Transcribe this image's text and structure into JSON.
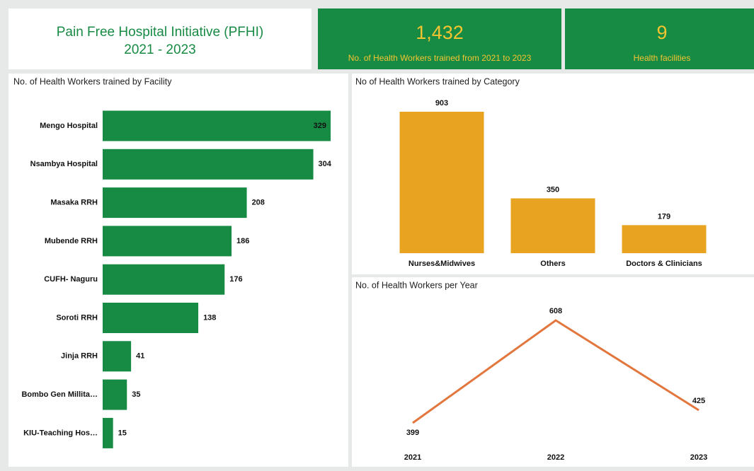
{
  "header": {
    "title_line1": "Pain Free Hospital Initiative (PFHI)",
    "title_line2": "2021 - 2023"
  },
  "kpis": [
    {
      "value": "1,432",
      "label": "No. of Health Workers trained from 2021 to 2023"
    },
    {
      "value": "9",
      "label": "Health facilities"
    }
  ],
  "chart_data": [
    {
      "type": "bar",
      "orientation": "horizontal",
      "title": "No. of Health Workers trained by Facility",
      "categories": [
        "Mengo Hospital",
        "Nsambya Hospital",
        "Masaka RRH",
        "Mubende RRH",
        "CUFH- Naguru",
        "Soroti RRH",
        "Jinja RRH",
        "Bombo Gen Millita…",
        "KIU-Teaching Hos…"
      ],
      "values": [
        329,
        304,
        208,
        186,
        176,
        138,
        41,
        35,
        15
      ],
      "color": "#178a43"
    },
    {
      "type": "bar",
      "orientation": "vertical",
      "title": "No of Health Workers trained by Category",
      "categories": [
        "Nurses&Midwives",
        "Others",
        "Doctors & Clinicians"
      ],
      "values": [
        903,
        350,
        179
      ],
      "color": "#e8a321"
    },
    {
      "type": "line",
      "title": "No. of Health Workers per Year",
      "categories": [
        "2021",
        "2022",
        "2023"
      ],
      "values": [
        399,
        608,
        425
      ],
      "color": "#e2763c"
    }
  ]
}
